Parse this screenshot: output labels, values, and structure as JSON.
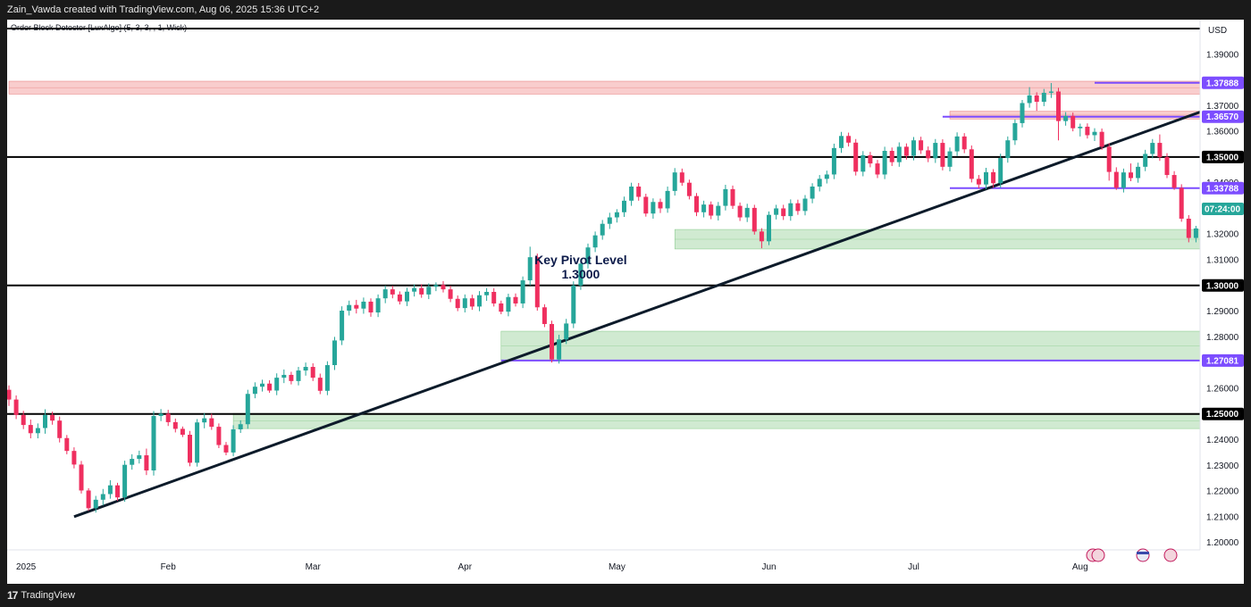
{
  "header": {
    "attribution": "Zain_Vawda created with TradingView.com, Aug 06, 2025 15:36 UTC+2"
  },
  "indicator_label": "Order Block Detector [LuxAlgo] (5, 3, 3, , 1, Wick)",
  "footer": {
    "brand": "TradingView",
    "logo_mark": "17"
  },
  "colors": {
    "up": "#26a69a",
    "down": "#ef2f5f",
    "purple": "#7c4dff",
    "trendline": "#0d1b2a",
    "green_zone": "#c8e6c9",
    "red_zone": "#f8c4c4"
  },
  "chart_data": {
    "type": "candlestick",
    "symbol_currency": "USD",
    "ylim": [
      1.195,
      1.4
    ],
    "y_ticks": [
      {
        "value": 1.39,
        "label": "1.39000"
      },
      {
        "value": 1.37,
        "label": "1.37000"
      },
      {
        "value": 1.36,
        "label": "1.36000"
      },
      {
        "value": 1.34,
        "label": "1.34000"
      },
      {
        "value": 1.32,
        "label": "1.32000"
      },
      {
        "value": 1.31,
        "label": "1.31000"
      },
      {
        "value": 1.29,
        "label": "1.29000"
      },
      {
        "value": 1.28,
        "label": "1.28000"
      },
      {
        "value": 1.26,
        "label": "1.26000"
      },
      {
        "value": 1.24,
        "label": "1.24000"
      },
      {
        "value": 1.23,
        "label": "1.23000"
      },
      {
        "value": 1.22,
        "label": "1.22000"
      },
      {
        "value": 1.21,
        "label": "1.21000"
      },
      {
        "value": 1.2,
        "label": "1.20000"
      }
    ],
    "x_ticks": [
      {
        "index": 0,
        "label": "2025"
      },
      {
        "index": 22,
        "label": "Feb"
      },
      {
        "index": 42,
        "label": "Mar"
      },
      {
        "index": 63,
        "label": "Apr"
      },
      {
        "index": 84,
        "label": "May"
      },
      {
        "index": 105,
        "label": "Jun"
      },
      {
        "index": 125,
        "label": "Jul"
      },
      {
        "index": 148,
        "label": "Aug"
      }
    ],
    "candles": [
      [
        1.2594,
        1.2611,
        1.2531,
        1.2556
      ],
      [
        1.2556,
        1.2572,
        1.248,
        1.2496
      ],
      [
        1.2496,
        1.2512,
        1.2441,
        1.2457
      ],
      [
        1.2457,
        1.2478,
        1.2405,
        1.2425
      ],
      [
        1.2425,
        1.2463,
        1.2405,
        1.2445
      ],
      [
        1.2445,
        1.2518,
        1.2423,
        1.2496
      ],
      [
        1.2496,
        1.2509,
        1.2458,
        1.2474
      ],
      [
        1.2474,
        1.249,
        1.2389,
        1.2406
      ],
      [
        1.2406,
        1.2418,
        1.2343,
        1.2356
      ],
      [
        1.2356,
        1.237,
        1.2288,
        1.2303
      ],
      [
        1.2303,
        1.2317,
        1.219,
        1.2202
      ],
      [
        1.2202,
        1.2211,
        1.2123,
        1.2133
      ],
      [
        1.2133,
        1.2181,
        1.2116,
        1.2166
      ],
      [
        1.2166,
        1.2208,
        1.2144,
        1.2188
      ],
      [
        1.2188,
        1.2242,
        1.217,
        1.2222
      ],
      [
        1.2222,
        1.2232,
        1.2162,
        1.2175
      ],
      [
        1.2175,
        1.2318,
        1.2158,
        1.2302
      ],
      [
        1.2302,
        1.2343,
        1.2283,
        1.2325
      ],
      [
        1.2325,
        1.2357,
        1.2307,
        1.2339
      ],
      [
        1.2339,
        1.2365,
        1.2262,
        1.228
      ],
      [
        1.228,
        1.2511,
        1.226,
        1.2492
      ],
      [
        1.2492,
        1.2519,
        1.2472,
        1.2501
      ],
      [
        1.2501,
        1.2516,
        1.2453,
        1.2468
      ],
      [
        1.2468,
        1.2482,
        1.2428,
        1.2442
      ],
      [
        1.2442,
        1.2451,
        1.241,
        1.2419
      ],
      [
        1.2419,
        1.2434,
        1.2296,
        1.231
      ],
      [
        1.231,
        1.248,
        1.2295,
        1.2467
      ],
      [
        1.2467,
        1.2503,
        1.2444,
        1.2483
      ],
      [
        1.2483,
        1.2501,
        1.2438,
        1.245
      ],
      [
        1.245,
        1.2463,
        1.2367,
        1.2379
      ],
      [
        1.2379,
        1.2391,
        1.2339,
        1.235
      ],
      [
        1.235,
        1.2456,
        1.2335,
        1.244
      ],
      [
        1.244,
        1.2475,
        1.2426,
        1.246
      ],
      [
        1.246,
        1.2594,
        1.2442,
        1.2578
      ],
      [
        1.2578,
        1.2623,
        1.2561,
        1.2606
      ],
      [
        1.2606,
        1.2633,
        1.2587,
        1.2618
      ],
      [
        1.2618,
        1.2631,
        1.2582,
        1.2591
      ],
      [
        1.2591,
        1.2658,
        1.2573,
        1.2641
      ],
      [
        1.2641,
        1.2673,
        1.262,
        1.2652
      ],
      [
        1.2652,
        1.2664,
        1.2615,
        1.2628
      ],
      [
        1.2628,
        1.2683,
        1.2611,
        1.2669
      ],
      [
        1.2669,
        1.27,
        1.2649,
        1.2683
      ],
      [
        1.2683,
        1.2697,
        1.2628,
        1.2641
      ],
      [
        1.2641,
        1.2657,
        1.2577,
        1.259
      ],
      [
        1.259,
        1.2705,
        1.2573,
        1.269
      ],
      [
        1.269,
        1.28,
        1.2671,
        1.2786
      ],
      [
        1.2786,
        1.2919,
        1.2768,
        1.2902
      ],
      [
        1.2902,
        1.2941,
        1.2883,
        1.2924
      ],
      [
        1.2924,
        1.2944,
        1.2891,
        1.291
      ],
      [
        1.291,
        1.2953,
        1.289,
        1.2937
      ],
      [
        1.2937,
        1.295,
        1.2878,
        1.2895
      ],
      [
        1.2895,
        1.2965,
        1.2877,
        1.295
      ],
      [
        1.295,
        1.3,
        1.2931,
        1.2985
      ],
      [
        1.2985,
        1.2999,
        1.295,
        1.2965
      ],
      [
        1.2965,
        1.2977,
        1.2926,
        1.2938
      ],
      [
        1.2938,
        1.2991,
        1.292,
        1.2976
      ],
      [
        1.2976,
        1.3004,
        1.2957,
        1.299
      ],
      [
        1.299,
        1.3005,
        1.2952,
        1.2965
      ],
      [
        1.2965,
        1.3008,
        1.2947,
        1.2995
      ],
      [
        1.2995,
        1.3012,
        1.2978,
        1.3002
      ],
      [
        1.3002,
        1.3017,
        1.2973,
        1.2985
      ],
      [
        1.2985,
        1.2999,
        1.2935,
        1.2948
      ],
      [
        1.2948,
        1.2961,
        1.29,
        1.2912
      ],
      [
        1.2912,
        1.2965,
        1.2895,
        1.295
      ],
      [
        1.295,
        1.2964,
        1.2905,
        1.2918
      ],
      [
        1.2918,
        1.2978,
        1.29,
        1.2962
      ],
      [
        1.2962,
        1.299,
        1.294,
        1.2975
      ],
      [
        1.2975,
        1.2989,
        1.2918,
        1.293
      ],
      [
        1.293,
        1.2941,
        1.2888,
        1.2898
      ],
      [
        1.2898,
        1.2968,
        1.288,
        1.2955
      ],
      [
        1.2955,
        1.2969,
        1.2918,
        1.293
      ],
      [
        1.293,
        1.3035,
        1.2912,
        1.302
      ],
      [
        1.302,
        1.3151,
        1.3,
        1.311
      ],
      [
        1.311,
        1.3124,
        1.2902,
        1.2915
      ],
      [
        1.2915,
        1.2927,
        1.2838,
        1.285
      ],
      [
        1.285,
        1.2863,
        1.27,
        1.2712
      ],
      [
        1.2712,
        1.2808,
        1.2696,
        1.279
      ],
      [
        1.279,
        1.287,
        1.2772,
        1.2852
      ],
      [
        1.2852,
        1.3016,
        1.2834,
        1.3
      ],
      [
        1.3,
        1.3102,
        1.2983,
        1.3085
      ],
      [
        1.3085,
        1.3163,
        1.3066,
        1.3148
      ],
      [
        1.3148,
        1.321,
        1.313,
        1.3195
      ],
      [
        1.3195,
        1.3255,
        1.3178,
        1.324
      ],
      [
        1.324,
        1.3283,
        1.322,
        1.3265
      ],
      [
        1.3265,
        1.3297,
        1.3245,
        1.3285
      ],
      [
        1.3285,
        1.3346,
        1.3267,
        1.333
      ],
      [
        1.333,
        1.34,
        1.331,
        1.3385
      ],
      [
        1.3385,
        1.3399,
        1.333,
        1.3345
      ],
      [
        1.3345,
        1.3357,
        1.3268,
        1.328
      ],
      [
        1.328,
        1.3339,
        1.326,
        1.3325
      ],
      [
        1.3325,
        1.3338,
        1.3282,
        1.33
      ],
      [
        1.33,
        1.3385,
        1.3283,
        1.3368
      ],
      [
        1.3368,
        1.3457,
        1.335,
        1.344
      ],
      [
        1.344,
        1.3455,
        1.3388,
        1.34
      ],
      [
        1.34,
        1.3412,
        1.3335,
        1.3348
      ],
      [
        1.3348,
        1.336,
        1.327,
        1.3285
      ],
      [
        1.3285,
        1.333,
        1.3265,
        1.3315
      ],
      [
        1.3315,
        1.3327,
        1.3258,
        1.3272
      ],
      [
        1.3272,
        1.3325,
        1.3253,
        1.331
      ],
      [
        1.331,
        1.3392,
        1.3292,
        1.3375
      ],
      [
        1.3375,
        1.3389,
        1.3298,
        1.331
      ],
      [
        1.331,
        1.3323,
        1.3251,
        1.3265
      ],
      [
        1.3265,
        1.3318,
        1.3247,
        1.3302
      ],
      [
        1.3302,
        1.3314,
        1.3198,
        1.321
      ],
      [
        1.321,
        1.3223,
        1.3145,
        1.3172
      ],
      [
        1.3172,
        1.3288,
        1.3157,
        1.3275
      ],
      [
        1.3275,
        1.3314,
        1.3257,
        1.33
      ],
      [
        1.33,
        1.3314,
        1.3255,
        1.327
      ],
      [
        1.327,
        1.3335,
        1.3252,
        1.332
      ],
      [
        1.332,
        1.3334,
        1.3275,
        1.329
      ],
      [
        1.329,
        1.3352,
        1.3273,
        1.3338
      ],
      [
        1.3338,
        1.3398,
        1.332,
        1.3385
      ],
      [
        1.3385,
        1.343,
        1.3366,
        1.3415
      ],
      [
        1.3415,
        1.3447,
        1.3397,
        1.3432
      ],
      [
        1.3432,
        1.3552,
        1.3414,
        1.3535
      ],
      [
        1.3535,
        1.3598,
        1.3516,
        1.3582
      ],
      [
        1.3582,
        1.3595,
        1.3541,
        1.3556
      ],
      [
        1.3556,
        1.357,
        1.3428,
        1.3443
      ],
      [
        1.3443,
        1.3523,
        1.3425,
        1.3507
      ],
      [
        1.3507,
        1.352,
        1.346,
        1.3475
      ],
      [
        1.3475,
        1.3489,
        1.3418,
        1.3432
      ],
      [
        1.3432,
        1.354,
        1.3414,
        1.3524
      ],
      [
        1.3524,
        1.3537,
        1.3465,
        1.348
      ],
      [
        1.348,
        1.3557,
        1.3462,
        1.354
      ],
      [
        1.354,
        1.3553,
        1.349,
        1.3505
      ],
      [
        1.3505,
        1.3578,
        1.3487,
        1.3565
      ],
      [
        1.3565,
        1.3579,
        1.3512,
        1.3526
      ],
      [
        1.3526,
        1.3541,
        1.348,
        1.3495
      ],
      [
        1.3495,
        1.357,
        1.3477,
        1.3555
      ],
      [
        1.3555,
        1.3569,
        1.3448,
        1.3462
      ],
      [
        1.3462,
        1.3537,
        1.3444,
        1.3522
      ],
      [
        1.3522,
        1.3596,
        1.3504,
        1.358
      ],
      [
        1.358,
        1.3593,
        1.3515,
        1.353
      ],
      [
        1.353,
        1.3545,
        1.3401,
        1.3415
      ],
      [
        1.3415,
        1.343,
        1.3378,
        1.3393
      ],
      [
        1.3393,
        1.3458,
        1.3375,
        1.3441
      ],
      [
        1.3441,
        1.3453,
        1.3381,
        1.3398
      ],
      [
        1.3398,
        1.3513,
        1.338,
        1.3496
      ],
      [
        1.3496,
        1.358,
        1.3478,
        1.3565
      ],
      [
        1.3565,
        1.3646,
        1.3547,
        1.3632
      ],
      [
        1.3632,
        1.3722,
        1.3615,
        1.371
      ],
      [
        1.371,
        1.3772,
        1.3692,
        1.374
      ],
      [
        1.374,
        1.3752,
        1.368,
        1.3715
      ],
      [
        1.3715,
        1.3765,
        1.3698,
        1.375
      ],
      [
        1.375,
        1.3788,
        1.373,
        1.3755
      ],
      [
        1.3755,
        1.3769,
        1.3565,
        1.364
      ],
      [
        1.364,
        1.3675,
        1.3622,
        1.366
      ],
      [
        1.366,
        1.3673,
        1.36,
        1.3612
      ],
      [
        1.3612,
        1.363,
        1.358,
        1.3618
      ],
      [
        1.3618,
        1.3631,
        1.3572,
        1.3585
      ],
      [
        1.3585,
        1.3612,
        1.3562,
        1.3598
      ],
      [
        1.3598,
        1.3611,
        1.3528,
        1.354
      ],
      [
        1.354,
        1.3554,
        1.3408,
        1.3442
      ],
      [
        1.3442,
        1.346,
        1.3372,
        1.338
      ],
      [
        1.338,
        1.3455,
        1.3362,
        1.344
      ],
      [
        1.344,
        1.3475,
        1.3406,
        1.3418
      ],
      [
        1.3418,
        1.3478,
        1.34,
        1.3462
      ],
      [
        1.3462,
        1.3528,
        1.3445,
        1.3512
      ],
      [
        1.3512,
        1.357,
        1.3495,
        1.3555
      ],
      [
        1.3555,
        1.3588,
        1.3485,
        1.35
      ],
      [
        1.35,
        1.3515,
        1.3418,
        1.343
      ],
      [
        1.343,
        1.3445,
        1.3372,
        1.338
      ],
      [
        1.338,
        1.3394,
        1.3248,
        1.326
      ],
      [
        1.326,
        1.3274,
        1.3168,
        1.3185
      ],
      [
        1.3185,
        1.3232,
        1.3168,
        1.3222
      ],
      [
        1.3222,
        1.3236,
        1.3147,
        1.3255
      ],
      [
        1.3255,
        1.3285,
        1.3238,
        1.327
      ],
      [
        1.327,
        1.3292,
        1.3253,
        1.3278
      ],
      [
        1.3278,
        1.3308,
        1.3262,
        1.3296
      ]
    ],
    "horizontal_levels": [
      {
        "value": 1.4,
        "label": ""
      },
      {
        "value": 1.35,
        "label": "1.35000"
      },
      {
        "value": 1.3,
        "label": "1.30000"
      },
      {
        "value": 1.25,
        "label": "1.25000"
      }
    ],
    "purple_levels": [
      {
        "value": 1.37888,
        "label": "1.37888",
        "start_index": 150
      },
      {
        "value": 1.3657,
        "label": "1.36570",
        "start_index": 129
      },
      {
        "value": 1.33788,
        "label": "1.33788",
        "start_index": 130
      },
      {
        "value": 1.27081,
        "label": "1.27081",
        "start_index": 68
      }
    ],
    "zones": [
      {
        "kind": "supply",
        "top": 1.3795,
        "bottom": 1.3745,
        "start_index": 0
      },
      {
        "kind": "supply",
        "top": 1.3678,
        "bottom": 1.3648,
        "start_index": 130
      },
      {
        "kind": "demand",
        "top": 1.3218,
        "bottom": 1.3142,
        "start_index": 92
      },
      {
        "kind": "demand",
        "top": 1.2822,
        "bottom": 1.2708,
        "start_index": 68
      },
      {
        "kind": "demand",
        "top": 1.2502,
        "bottom": 1.2443,
        "start_index": 31
      }
    ],
    "trendline": {
      "start": [
        9,
        1.21
      ],
      "end": [
        170,
        1.373
      ]
    },
    "current_price": {
      "value": 1.3298,
      "label": "07:24:00"
    },
    "annotation": {
      "line1": "Key Pivot Level",
      "line2": "1.3000",
      "index": 79,
      "value": 1.3075
    }
  }
}
